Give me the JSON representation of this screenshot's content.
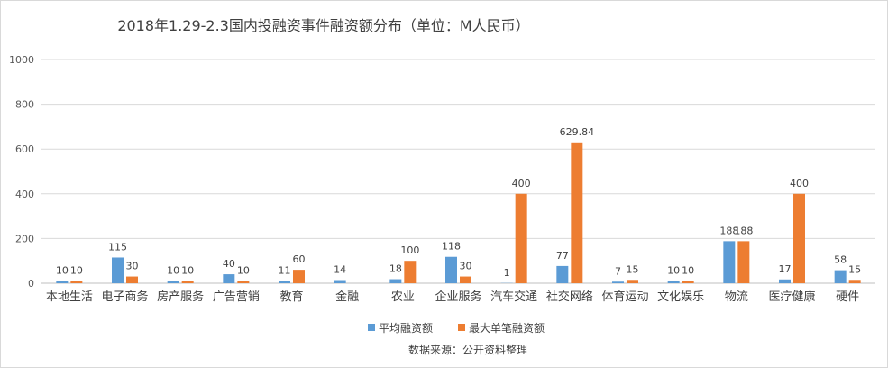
{
  "chart_data": {
    "type": "bar",
    "title": "2018年1.29-2.3国内投融资事件融资额分布（单位：M人民币）",
    "categories": [
      "本地生活",
      "电子商务",
      "房产服务",
      "广告营销",
      "教育",
      "金融",
      "农业",
      "企业服务",
      "汽车交通",
      "社交网络",
      "体育运动",
      "文化娱乐",
      "物流",
      "医疗健康",
      "硬件"
    ],
    "series": [
      {
        "name": "平均融资额",
        "color": "#5B9BD5",
        "values": [
          10,
          115,
          10,
          40,
          11,
          14,
          18,
          118,
          1,
          77,
          7,
          10,
          188,
          17,
          58
        ],
        "labels": [
          "10",
          "115",
          "10",
          "40",
          "11",
          "14",
          "18",
          "118",
          "1",
          "77",
          "7",
          "10",
          "188",
          "17",
          "58"
        ]
      },
      {
        "name": "最大单笔融资额",
        "color": "#ED7D31",
        "values": [
          10,
          30,
          10,
          10,
          60,
          null,
          100,
          30,
          400,
          629.84,
          15,
          10,
          188,
          400,
          15
        ],
        "labels": [
          "10",
          "30",
          "10",
          "10",
          "60",
          "",
          "100",
          "30",
          "400",
          "629.84",
          "15",
          "10",
          "188",
          "400",
          "15"
        ]
      }
    ],
    "ylim": [
      0,
      1000
    ],
    "yticks": [
      0,
      200,
      400,
      600,
      800,
      1000
    ],
    "grid": true,
    "legend_position": "bottom",
    "source_note": "数据来源：公开资料整理"
  }
}
